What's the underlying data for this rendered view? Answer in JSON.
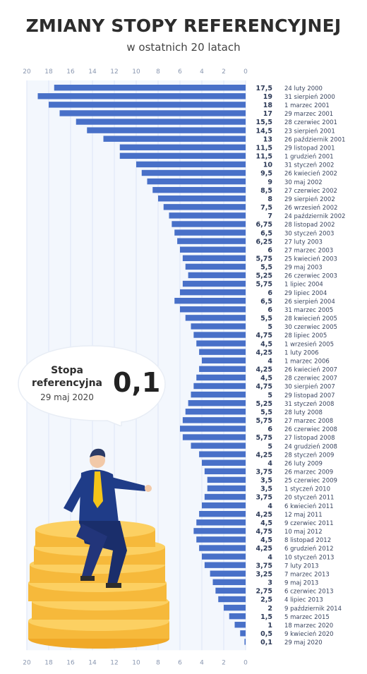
{
  "header": {
    "title": "ZMIANY STOPY REFERENCYJNEJ",
    "subtitle": "w ostatnich 20 latach"
  },
  "callout": {
    "label": "Stopa referencyjna",
    "date": "29 maj 2020",
    "value": "0,1"
  },
  "colors": {
    "bar": "#4870c8",
    "grid": "#dce6f7",
    "text": "#333333"
  },
  "chart_data": {
    "type": "bar",
    "orientation": "horizontal",
    "axis_reversed": true,
    "xlim": [
      0,
      20
    ],
    "ticks": [
      "20",
      "18",
      "16",
      "14",
      "12",
      "10",
      "8",
      "6",
      "4",
      "2",
      "0"
    ],
    "grid": true,
    "value_labels": [
      "17,5",
      "19",
      "18",
      "17",
      "15,5",
      "14,5",
      "13",
      "11,5",
      "11,5",
      "10",
      "9,5",
      "9",
      "8,5",
      "8",
      "7,5",
      "7",
      "6,75",
      "6,5",
      "6,25",
      "6",
      "5,75",
      "5,5",
      "5,25",
      "5,75",
      "6",
      "6,5",
      "6",
      "5,5",
      "5",
      "4,75",
      "4,5",
      "4,25",
      "4",
      "4,25",
      "4,5",
      "4,75",
      "5",
      "5,25",
      "5,5",
      "5,75",
      "6",
      "5,75",
      "5",
      "4,25",
      "4",
      "3,75",
      "3,5",
      "3,5",
      "3,75",
      "4",
      "4,25",
      "4,5",
      "4,75",
      "4,5",
      "4,25",
      "4",
      "3,75",
      "3,25",
      "3",
      "2,75",
      "2,5",
      "2",
      "1,5",
      "1",
      "0,5",
      "0,1"
    ],
    "values": [
      17.5,
      19,
      18,
      17,
      15.5,
      14.5,
      13,
      11.5,
      11.5,
      10,
      9.5,
      9,
      8.5,
      8,
      7.5,
      7,
      6.75,
      6.5,
      6.25,
      6,
      5.75,
      5.5,
      5.25,
      5.75,
      6,
      6.5,
      6,
      5.5,
      5,
      4.75,
      4.5,
      4.25,
      4,
      4.25,
      4.5,
      4.75,
      5,
      5.25,
      5.5,
      5.75,
      6,
      5.75,
      5,
      4.25,
      4,
      3.75,
      3.5,
      3.5,
      3.75,
      4,
      4.25,
      4.5,
      4.75,
      4.5,
      4.25,
      4,
      3.75,
      3.25,
      3,
      2.75,
      2.5,
      2,
      1.5,
      1,
      0.5,
      0.1
    ],
    "categories": [
      "24 luty 2000",
      "31 sierpień 2000",
      "1 marzec 2001",
      "29 marzec 2001",
      "28 czerwiec 2001",
      "23 sierpień 2001",
      "26 październik 2001",
      "29 listopad 2001",
      "1 grudzień 2001",
      "31 styczeń 2002",
      "26 kwiecień 2002",
      "30 maj 2002",
      "27 czerwiec 2002",
      "29 sierpień 2002",
      "26 wrzesień 2002",
      "24 październik 2002",
      "28 listopad 2002",
      "30 styczeń 2003",
      "27 luty 2003",
      "27 marzec 2003",
      "25 kwiecień 2003",
      "29 maj 2003",
      "26 czerwiec 2003",
      "1 lipiec 2004",
      "29 lipiec 2004",
      "26 sierpień 2004",
      "31 marzec 2005",
      "28 kwiecień 2005",
      "30 czerwiec 2005",
      "28 lipiec 2005",
      "1 wrzesień 2005",
      "1 luty 2006",
      "1 marzec 2006",
      "26 kwiecień 2007",
      "28 czerwiec 2007",
      "30 sierpień 2007",
      "29 listopad 2007",
      "31 styczeń 2008",
      "28 luty 2008",
      "27 marzec 2008",
      "26 czerwiec 2008",
      "27 listopad 2008",
      "24 grudzień 2008",
      "28 styczeń 2009",
      "26 luty 2009",
      "26 marzec 2009",
      "25 czerwiec 2009",
      "1 styczeń 2010",
      "20 styczeń 2011",
      "6 kwiecień 2011",
      "12 maj 2011",
      "9 czerwiec 2011",
      "10 maj 2012",
      "8 listopad 2012",
      "6 grudzień 2012",
      "10 styczeń 2013",
      "7 luty 2013",
      "7 marzec 2013",
      "9 maj 2013",
      "6 czerwiec 2013",
      "4 lipiec 2013",
      "9 październik 2014",
      "5 marzec 2015",
      "18 marzec 2020",
      "9 kwiecień 2020",
      "29 maj 2020"
    ]
  }
}
